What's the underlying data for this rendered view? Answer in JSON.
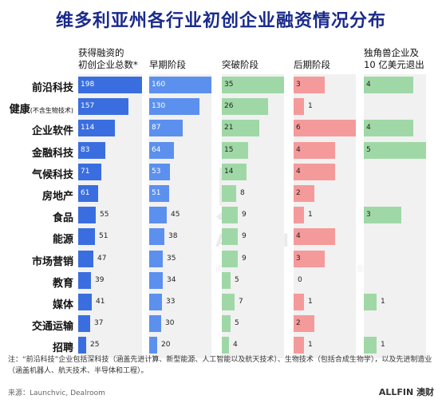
{
  "title": "维多利亚州各行业初创企业融资情况分布",
  "colors": {
    "title": "#1a2a8c",
    "total": "#3a6ee0",
    "early": "#5c90ee",
    "breakout": "#9fd8a6",
    "late": "#f59a9a",
    "unicorn": "#9fd8a6",
    "column_bg": "#f1f1f1"
  },
  "chart_data": {
    "type": "bar",
    "title": "维多利亚州各行业初创企业融资情况分布",
    "categories": [
      {
        "main": "前沿科技",
        "sub": ""
      },
      {
        "main": "健康",
        "sub": "(不含生物技术)"
      },
      {
        "main": "企业软件",
        "sub": ""
      },
      {
        "main": "金融科技",
        "sub": ""
      },
      {
        "main": "气候科技",
        "sub": ""
      },
      {
        "main": "房地产",
        "sub": ""
      },
      {
        "main": "食品",
        "sub": ""
      },
      {
        "main": "能源",
        "sub": ""
      },
      {
        "main": "市场营销",
        "sub": ""
      },
      {
        "main": "教育",
        "sub": ""
      },
      {
        "main": "媒体",
        "sub": ""
      },
      {
        "main": "交通运输",
        "sub": ""
      },
      {
        "main": "招聘",
        "sub": ""
      }
    ],
    "series": [
      {
        "name": "获得融资的初创企业总数*",
        "header_lines": [
          "获得融资的",
          "初创企业总数*"
        ],
        "color_key": "total",
        "values": [
          198,
          157,
          114,
          83,
          71,
          61,
          55,
          51,
          47,
          39,
          41,
          37,
          25
        ]
      },
      {
        "name": "早期阶段",
        "header_lines": [
          "早期阶段"
        ],
        "color_key": "early",
        "values": [
          160,
          130,
          87,
          64,
          53,
          51,
          45,
          38,
          35,
          34,
          33,
          30,
          20
        ]
      },
      {
        "name": "突破阶段",
        "header_lines": [
          "突破阶段"
        ],
        "color_key": "breakout",
        "values": [
          35,
          26,
          21,
          15,
          14,
          8,
          9,
          9,
          9,
          5,
          7,
          5,
          4
        ]
      },
      {
        "name": "后期阶段",
        "header_lines": [
          "后期阶段"
        ],
        "color_key": "late",
        "values": [
          3,
          1,
          6,
          4,
          4,
          2,
          1,
          4,
          3,
          0,
          1,
          2,
          1
        ]
      },
      {
        "name": "独角兽企业及10亿美元退出",
        "header_lines": [
          "独角兽企业及",
          "10 亿美元退出"
        ],
        "color_key": "unicorn",
        "values": [
          4,
          null,
          4,
          5,
          null,
          null,
          3,
          null,
          null,
          null,
          1,
          null,
          1
        ]
      }
    ]
  },
  "note": "注：“前沿科技”企业包括深科技（涵盖先进计算、新型能源、人工智能以及航天技术）、生物技术（包括合成生物学），以及先进制造业（涵盖机器人、航天技术、半导体和工程）。",
  "source": "来源：Launchvic, Dealroom",
  "brand": "ALLFIN 澳财",
  "watermark": "澳财",
  "watermark_en": "ALLFIN",
  "watermark_cn": "阅 澳 集 团 旗 下 企 业"
}
